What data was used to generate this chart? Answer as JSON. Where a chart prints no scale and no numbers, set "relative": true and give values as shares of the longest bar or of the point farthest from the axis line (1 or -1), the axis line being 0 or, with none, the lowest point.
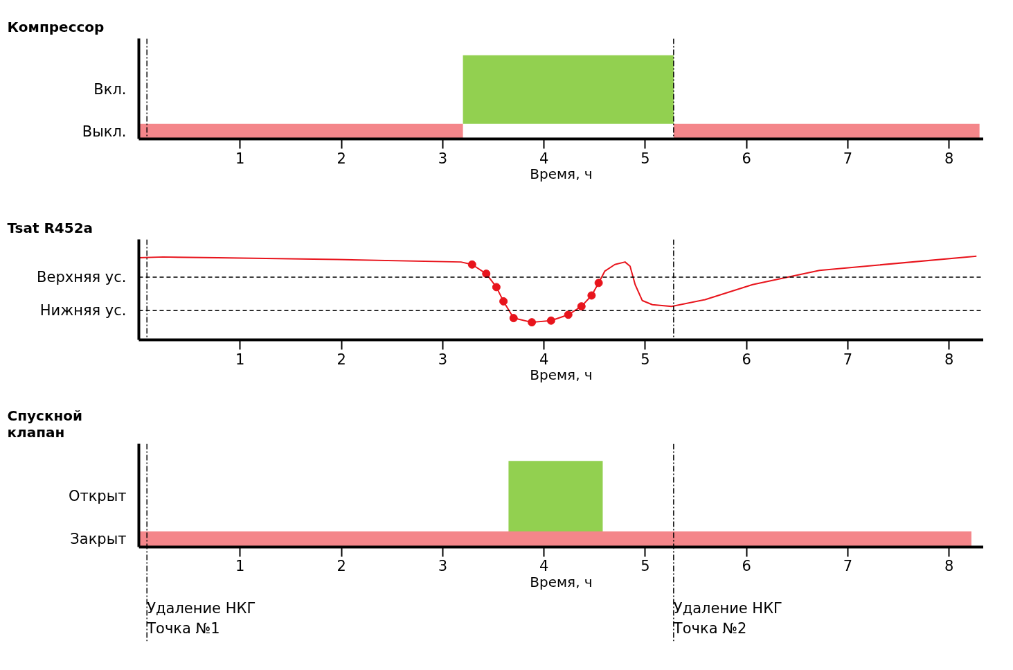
{
  "chart_data": [
    {
      "type": "bar",
      "orientation": "horizontal",
      "title": "Компрессор",
      "xlabel": "Время, ч",
      "xlim": [
        0,
        8.34
      ],
      "xticks": [
        1,
        2,
        3,
        4,
        5,
        6,
        7,
        8
      ],
      "categories": [
        "Вкл.",
        "Выкл."
      ],
      "grid": false,
      "series": [
        {
          "color": "#f4868a",
          "values": [
            null,
            3.2
          ],
          "base": [
            null,
            0
          ]
        },
        {
          "color": "#f4868a",
          "values": [
            null,
            3.02
          ],
          "base": [
            null,
            5.28
          ]
        },
        {
          "color": "#92d050",
          "values": [
            2.08,
            null
          ],
          "base": [
            3.2,
            null
          ]
        }
      ],
      "ref_lines": [
        {
          "axis": "x",
          "value": 0.08,
          "line_style": "dashdot"
        },
        {
          "axis": "x",
          "value": 5.28,
          "line_style": "dashdot"
        }
      ]
    },
    {
      "type": "line",
      "title": "Tsat R452a",
      "xlabel": "Время, ч",
      "xlim": [
        0,
        8.34
      ],
      "xticks": [
        1,
        2,
        3,
        4,
        5,
        6,
        7,
        8
      ],
      "relative": true,
      "grid": false,
      "series": [
        {
          "color": "#e8141c",
          "type": "line",
          "marker": "none",
          "x": [
            0,
            0.24,
            0.78,
            1.96,
            3.18,
            3.29,
            3.43,
            3.53,
            3.6,
            3.7,
            3.88,
            4.07,
            4.24,
            4.37,
            4.47,
            4.54,
            4.6,
            4.7,
            4.8,
            4.85,
            4.9,
            4.97,
            5.07,
            5.26,
            5.59,
            6.06,
            6.72,
            8.27
          ],
          "values": [
            0.98,
            0.99,
            0.98,
            0.96,
            0.93,
            0.9,
            0.79,
            0.63,
            0.46,
            0.26,
            0.21,
            0.23,
            0.3,
            0.4,
            0.53,
            0.68,
            0.82,
            0.9,
            0.93,
            0.88,
            0.66,
            0.47,
            0.42,
            0.4,
            0.48,
            0.66,
            0.83,
            1.0
          ]
        },
        {
          "color": "#e8141c",
          "type": "scatter",
          "marker": "circle",
          "x": [
            3.29,
            3.43,
            3.53,
            3.6,
            3.7,
            3.88,
            4.07,
            4.24,
            4.37,
            4.47,
            4.54
          ],
          "values": [
            0.9,
            0.79,
            0.63,
            0.46,
            0.26,
            0.21,
            0.23,
            0.3,
            0.4,
            0.53,
            0.68
          ]
        }
      ],
      "ref_lines": [
        {
          "axis": "y",
          "value": 0.75,
          "label": "Верхняя ус.",
          "line_style": "dashed"
        },
        {
          "axis": "y",
          "value": 0.35,
          "label": "Нижняя ус.",
          "line_style": "dashed"
        },
        {
          "axis": "x",
          "value": 0.08,
          "line_style": "dashdot"
        },
        {
          "axis": "x",
          "value": 5.28,
          "line_style": "dashdot"
        }
      ]
    },
    {
      "type": "bar",
      "orientation": "horizontal",
      "title": "Спускной\nклапан",
      "xlabel": "Время, ч",
      "xlim": [
        0,
        8.34
      ],
      "xticks": [
        1,
        2,
        3,
        4,
        5,
        6,
        7,
        8
      ],
      "categories": [
        "Открыт",
        "Закрыт"
      ],
      "grid": false,
      "series": [
        {
          "color": "#f4868a",
          "values": [
            null,
            8.22
          ],
          "base": [
            null,
            0
          ]
        },
        {
          "color": "#92d050",
          "values": [
            0.93,
            null
          ],
          "base": [
            3.65,
            null
          ]
        }
      ],
      "ref_lines": [
        {
          "axis": "x",
          "value": 0.08,
          "label": "Удаление НКГ\nТочка №1",
          "line_style": "dashdot"
        },
        {
          "axis": "x",
          "value": 5.28,
          "label": "Удаление НКГ\nТочка №2",
          "line_style": "dashdot"
        }
      ]
    }
  ]
}
